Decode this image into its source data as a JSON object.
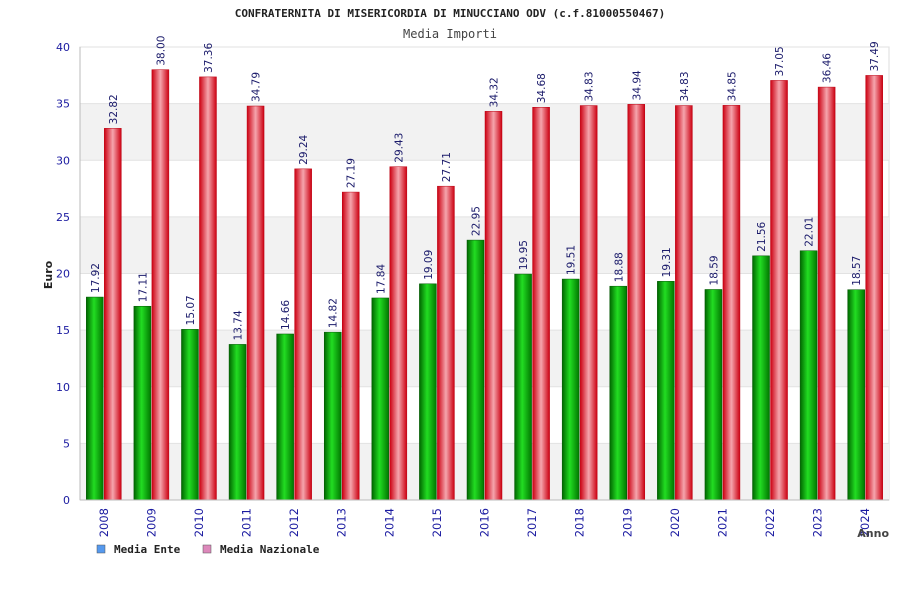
{
  "chart_data": {
    "type": "bar",
    "title": "CONFRATERNITA DI MISERICORDIA DI MINUCCIANO ODV (c.f.81000550467)",
    "subtitle": "Media Importi",
    "xlabel": "Anno",
    "ylabel": "Euro",
    "ylim": [
      0,
      40
    ],
    "yticks": [
      0,
      5,
      10,
      15,
      20,
      25,
      30,
      35,
      40
    ],
    "grid": true,
    "legend_position": "bottom-left",
    "categories": [
      "2008",
      "2009",
      "2010",
      "2011",
      "2012",
      "2013",
      "2014",
      "2015",
      "2016",
      "2017",
      "2018",
      "2019",
      "2020",
      "2021",
      "2022",
      "2023",
      "2024"
    ],
    "series": [
      {
        "name": "Media Ente",
        "color": "#00aa00",
        "legend_color": "#5599ee",
        "values": [
          17.92,
          17.11,
          15.07,
          13.74,
          14.66,
          14.82,
          17.84,
          19.09,
          22.95,
          19.95,
          19.51,
          18.88,
          19.31,
          18.59,
          21.56,
          22.01,
          18.57
        ],
        "labels": [
          "17.92",
          "17.11",
          "15.07",
          "13.74",
          "14.66",
          "14.82",
          "17.84",
          "19.09",
          "22.95",
          "19.95",
          "19.51",
          "18.88",
          "19.31",
          "18.59",
          "21.56",
          "22.01",
          "18.57"
        ]
      },
      {
        "name": "Media Nazionale",
        "color": "#ee2233",
        "legend_color": "#dd88bb",
        "values": [
          32.82,
          38.0,
          37.36,
          34.79,
          29.24,
          27.19,
          29.43,
          27.71,
          34.32,
          34.68,
          34.83,
          34.94,
          34.83,
          34.85,
          37.05,
          36.46,
          37.49
        ],
        "labels": [
          "32.82",
          "38.00",
          "37.36",
          "34.79",
          "29.24",
          "27.19",
          "29.43",
          "27.71",
          "34.32",
          "34.68",
          "34.83",
          "34.94",
          "34.83",
          "34.85",
          "37.05",
          "36.46",
          "37.49"
        ]
      }
    ]
  }
}
